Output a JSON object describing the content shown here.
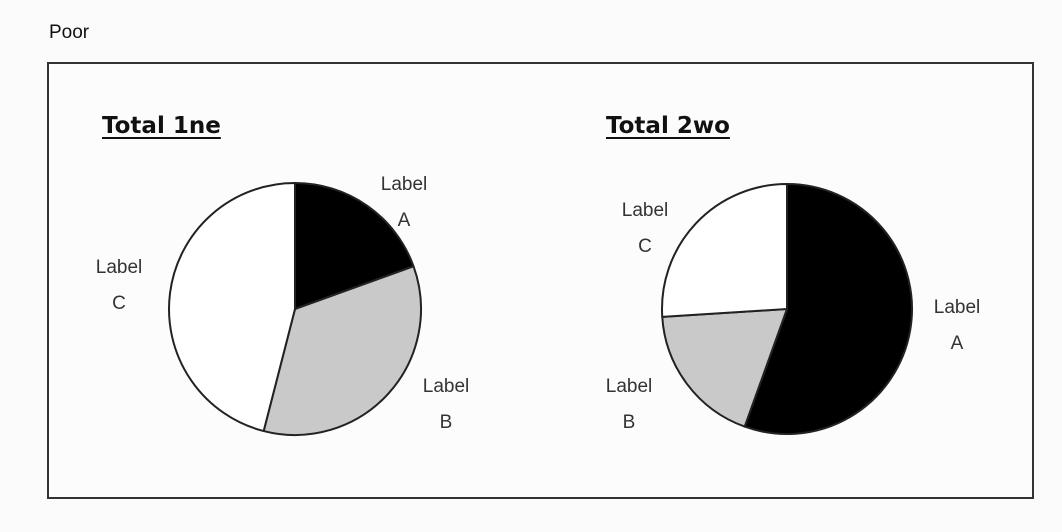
{
  "page": {
    "caption": "Poor"
  },
  "chart_data": [
    {
      "type": "pie",
      "title": "Total 1ne",
      "slices": [
        {
          "label": "Label A",
          "value": 19.5,
          "color": "#000000"
        },
        {
          "label": "Label B",
          "value": 34.5,
          "color": "#c9c9c9"
        },
        {
          "label": "Label C",
          "value": 46.0,
          "color": "#ffffff"
        }
      ]
    },
    {
      "type": "pie",
      "title": "Total 2wo",
      "slices": [
        {
          "label": "Label A",
          "value": 55.5,
          "color": "#000000"
        },
        {
          "label": "Label B",
          "value": 18.5,
          "color": "#c9c9c9"
        },
        {
          "label": "Label C",
          "value": 26.0,
          "color": "#ffffff"
        }
      ]
    }
  ]
}
